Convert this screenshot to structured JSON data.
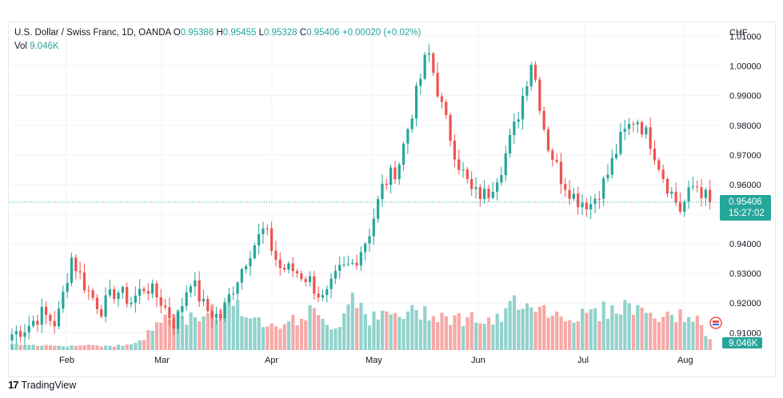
{
  "legend": {
    "title": "U.S. Dollar / Swiss Franc, 1D, OANDA",
    "open_label": "O",
    "open": "0.95386",
    "high_label": "H",
    "high": "0.95455",
    "low_label": "L",
    "low": "0.95328",
    "close_label": "C",
    "close": "0.95406",
    "change": "+0.00020 (+0.02%)",
    "vol_label": "Vol",
    "vol": "9.046K"
  },
  "currency": "CHF",
  "last_price": "0.95406",
  "countdown": "15:27:02",
  "last_volume": "9.046K",
  "brand": "TradingView",
  "colors": {
    "up": "#26a69a",
    "down": "#ef5350",
    "up_vol": "#92d2cc",
    "down_vol": "#f7a9a7",
    "grid": "#f0f3fa",
    "last_line": "#26a69a"
  },
  "chart_data": {
    "type": "candlestick",
    "title": "U.S. Dollar / Swiss Franc, 1D, OANDA",
    "y_axis_ticks": [
      "1.01000",
      "1.00000",
      "0.99000",
      "0.98000",
      "0.97000",
      "0.96000",
      "0.95000",
      "0.94000",
      "0.93000",
      "0.92000",
      "0.91000"
    ],
    "ylim": [
      0.9055,
      1.0115
    ],
    "x_axis_ticks": [
      "Feb",
      "Mar",
      "Apr",
      "May",
      "Jun",
      "Jul",
      "Aug"
    ],
    "anchor_closes": [
      0.9095,
      0.912,
      0.9165,
      0.913,
      0.9355,
      0.925,
      0.918,
      0.9245,
      0.9205,
      0.926,
      0.921,
      0.9125,
      0.9285,
      0.918,
      0.915,
      0.9265,
      0.9375,
      0.945,
      0.932,
      0.931,
      0.928,
      0.9205,
      0.9305,
      0.9335,
      0.943,
      0.96,
      0.966,
      0.986,
      1.0055,
      0.985,
      0.968,
      0.957,
      0.9565,
      0.9665,
      0.982,
      1.0025,
      0.9745,
      0.962,
      0.955,
      0.9535,
      0.962,
      0.9755,
      0.983,
      0.9745,
      0.961,
      0.9515,
      0.9605,
      0.954
    ],
    "volume_shape": [
      0.06,
      0.05,
      0.05,
      0.06,
      0.05,
      0.06,
      0.05,
      0.05,
      0.06,
      0.15,
      0.35,
      0.4,
      0.35,
      0.45,
      0.45,
      0.65,
      0.3,
      0.35,
      0.32,
      0.33,
      0.45,
      0.3,
      0.28,
      0.7,
      0.35,
      0.38,
      0.4,
      0.42,
      0.45,
      0.4,
      0.35,
      0.38,
      0.3,
      0.35,
      0.6,
      0.55,
      0.45,
      0.4,
      0.38,
      0.42,
      0.45,
      0.5,
      0.48,
      0.42,
      0.35,
      0.4,
      0.38,
      0.1
    ],
    "last_close": 0.95406
  }
}
